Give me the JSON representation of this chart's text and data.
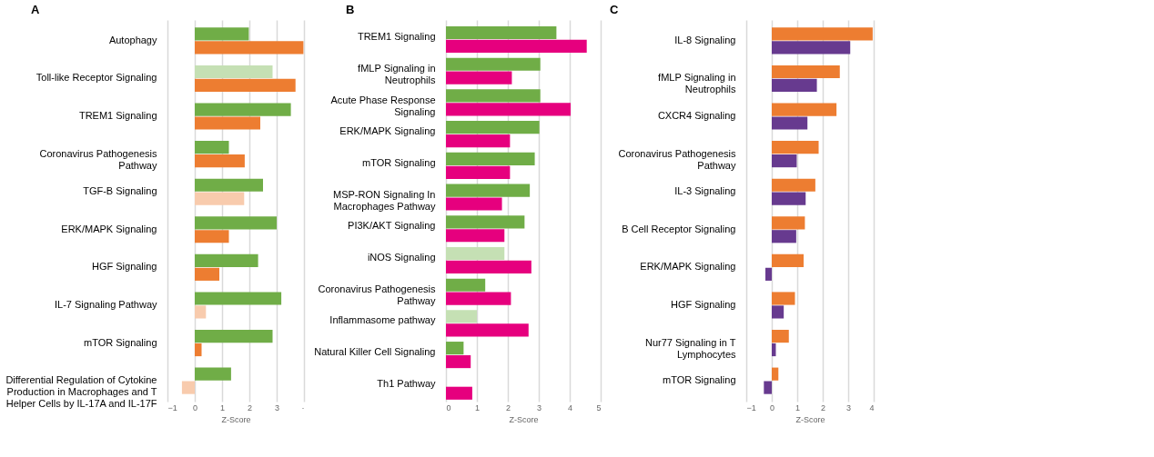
{
  "chart_data": [
    {
      "type": "bar",
      "orientation": "horizontal",
      "title": "A",
      "xlabel": "Z-Score",
      "grid": "x",
      "categories": [
        "Autophagy",
        "Toll-like Receptor Signaling",
        "TREM1 Signaling",
        "Coronavirus Pathogenesis\nPathway",
        "TGF-B Signaling",
        "ERK/MAPK Signaling",
        "HGF Signaling",
        "IL-7 Signaling Pathway",
        "mTOR Signaling",
        "Differential Regulation of Cytokine\nProduction in Macrophages and T\nHelper Cells by IL-17A and IL-17F"
      ],
      "xlim": [
        -1,
        4
      ],
      "xticks": [
        -1,
        0,
        1,
        2,
        3,
        {
          "value": 4,
          "label": "·"
        }
      ],
      "series": [
        {
          "values": [
            1.98,
            2.85,
            3.52,
            1.25,
            2.5,
            3.0,
            2.32,
            3.17,
            2.85,
            1.33
          ],
          "colors": [
            "#70ad47",
            "#c5e0b4",
            "#70ad47",
            "#70ad47",
            "#70ad47",
            "#70ad47",
            "#70ad47",
            "#70ad47",
            "#70ad47",
            "#70ad47"
          ]
        },
        {
          "values": [
            3.98,
            3.69,
            2.4,
            1.83,
            1.81,
            1.25,
            0.9,
            0.41,
            0.25,
            -0.47
          ],
          "colors": [
            "#ed7d31",
            "#ed7d31",
            "#ed7d31",
            "#ed7d31",
            "#f8cbad",
            "#ed7d31",
            "#ed7d31",
            "#f8cbad",
            "#ed7d31",
            "#f8cbad"
          ]
        }
      ]
    },
    {
      "type": "bar",
      "orientation": "horizontal",
      "title": "B",
      "xlabel": "Z-Score",
      "grid": "x",
      "categories": [
        "TREM1 Signaling",
        "fMLP Signaling in\nNeutrophils",
        "Acute Phase Response\nSignaling",
        "ERK/MAPK Signaling",
        "mTOR Signaling",
        "MSP-RON Signaling In\nMacrophages Pathway",
        "PI3K/AKT Signaling",
        "iNOS Signaling",
        "Coronavirus Pathogenesis\nPathway",
        "Inflammasome pathway",
        "Natural Killer Cell Signaling",
        "Th1 Pathway"
      ],
      "xlim": [
        0,
        5
      ],
      "xticks": [
        0,
        1,
        2,
        3,
        4,
        5
      ],
      "series": [
        {
          "values": [
            3.57,
            3.05,
            3.05,
            3.02,
            2.87,
            2.71,
            2.54,
            1.89,
            1.27,
            1.0,
            0.57,
            null
          ],
          "colors": [
            "#70ad47",
            "#70ad47",
            "#70ad47",
            "#70ad47",
            "#70ad47",
            "#70ad47",
            "#70ad47",
            "#c5e0b4",
            "#70ad47",
            "#c5e0b4",
            "#70ad47",
            "#70ad47"
          ]
        },
        {
          "values": [
            4.55,
            2.13,
            4.03,
            2.07,
            2.07,
            1.81,
            1.89,
            2.76,
            2.1,
            2.67,
            0.8,
            0.85
          ],
          "color": "#e6007e"
        }
      ]
    },
    {
      "type": "bar",
      "orientation": "horizontal",
      "title": "C",
      "xlabel": "Z-Score",
      "grid": "x",
      "categories": [
        "IL-8 Signaling",
        "fMLP Signaling in\nNeutrophils",
        "CXCR4 Signaling",
        "Coronavirus Pathogenesis\nPathway",
        "IL-3 Signaling",
        "B Cell Receptor Signaling",
        "ERK/MAPK Signaling",
        "HGF Signaling",
        "Nur77 Signaling in T\nLymphocytes",
        "mTOR Signaling"
      ],
      "xlim": [
        -1,
        4
      ],
      "xticks": [
        -1,
        0,
        1,
        2,
        3,
        4
      ],
      "series": [
        {
          "values": [
            3.96,
            2.67,
            2.54,
            1.84,
            1.71,
            1.3,
            1.25,
            0.91,
            0.67,
            0.26
          ],
          "color": "#ed7d31"
        },
        {
          "values": [
            3.08,
            1.77,
            1.4,
            0.98,
            1.33,
            0.96,
            -0.25,
            0.47,
            0.16,
            -0.31
          ],
          "color": "#673a8f"
        }
      ]
    }
  ]
}
